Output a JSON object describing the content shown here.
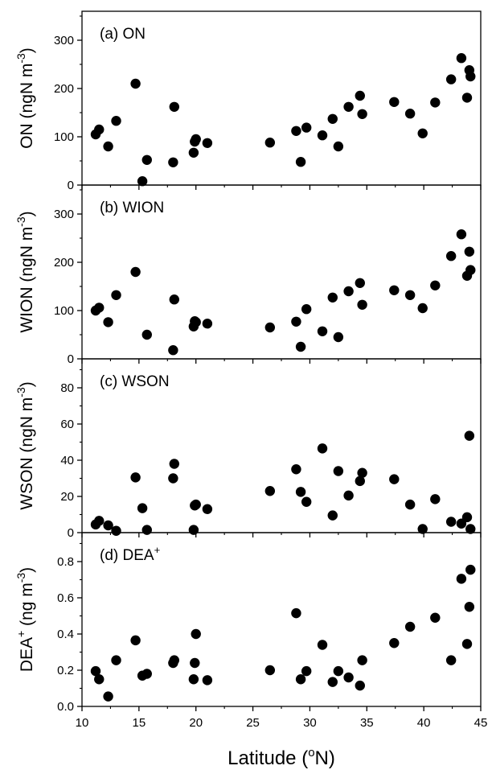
{
  "xaxis": {
    "label": "Latitude (",
    "label_sup": "o",
    "label_end": "N)",
    "range": [
      10,
      45
    ],
    "ticks": [
      10,
      15,
      20,
      25,
      30,
      35,
      40,
      45
    ]
  },
  "chart_data": [
    {
      "type": "scatter",
      "panel_label": "(a) ON",
      "ylabel_main": "ON (ngN m",
      "ylabel_sup": "-3",
      "ylabel_end": ")",
      "ylim": [
        0,
        360
      ],
      "yticks": [
        0,
        100,
        200,
        300
      ],
      "points": [
        [
          11.2,
          105
        ],
        [
          11.5,
          115
        ],
        [
          12.3,
          80
        ],
        [
          13.0,
          133
        ],
        [
          14.7,
          210
        ],
        [
          15.3,
          8
        ],
        [
          15.7,
          52
        ],
        [
          18.0,
          47
        ],
        [
          18.1,
          162
        ],
        [
          19.8,
          67
        ],
        [
          19.9,
          90
        ],
        [
          20.0,
          95
        ],
        [
          21.0,
          87
        ],
        [
          26.5,
          88
        ],
        [
          28.8,
          112
        ],
        [
          29.2,
          48
        ],
        [
          29.7,
          119
        ],
        [
          31.1,
          103
        ],
        [
          32.0,
          137
        ],
        [
          32.5,
          80
        ],
        [
          33.4,
          162
        ],
        [
          34.4,
          185
        ],
        [
          34.6,
          147
        ],
        [
          37.4,
          172
        ],
        [
          38.8,
          148
        ],
        [
          39.9,
          107
        ],
        [
          41.0,
          171
        ],
        [
          42.4,
          219
        ],
        [
          43.3,
          263
        ],
        [
          43.8,
          181
        ],
        [
          44.0,
          238
        ],
        [
          44.1,
          225
        ]
      ]
    },
    {
      "type": "scatter",
      "panel_label": "(b) WION",
      "ylabel_main": "WION (ngN m",
      "ylabel_sup": "-3",
      "ylabel_end": ")",
      "ylim": [
        0,
        360
      ],
      "yticks": [
        0,
        100,
        200,
        300
      ],
      "points": [
        [
          11.2,
          100
        ],
        [
          11.5,
          106
        ],
        [
          12.3,
          76
        ],
        [
          13.0,
          132
        ],
        [
          14.7,
          180
        ],
        [
          15.7,
          50
        ],
        [
          18.0,
          18
        ],
        [
          18.1,
          123
        ],
        [
          19.8,
          67
        ],
        [
          19.9,
          78
        ],
        [
          20.0,
          76
        ],
        [
          21.0,
          73
        ],
        [
          26.5,
          65
        ],
        [
          28.8,
          77
        ],
        [
          29.2,
          25
        ],
        [
          29.7,
          103
        ],
        [
          31.1,
          57
        ],
        [
          32.0,
          127
        ],
        [
          32.5,
          45
        ],
        [
          33.4,
          140
        ],
        [
          34.4,
          157
        ],
        [
          34.6,
          112
        ],
        [
          37.4,
          142
        ],
        [
          38.8,
          132
        ],
        [
          39.9,
          105
        ],
        [
          41.0,
          152
        ],
        [
          42.4,
          213
        ],
        [
          43.3,
          258
        ],
        [
          43.8,
          172
        ],
        [
          44.0,
          222
        ],
        [
          44.1,
          184
        ]
      ]
    },
    {
      "type": "scatter",
      "panel_label": "(c) WSON",
      "ylabel_main": "WSON (ngN m",
      "ylabel_sup": "-3",
      "ylabel_end": ")",
      "ylim": [
        0,
        96
      ],
      "yticks": [
        0,
        20,
        40,
        60,
        80
      ],
      "points": [
        [
          11.2,
          4.5
        ],
        [
          11.5,
          6.5
        ],
        [
          12.3,
          4
        ],
        [
          13.0,
          1
        ],
        [
          14.7,
          30.5
        ],
        [
          15.3,
          13.5
        ],
        [
          15.7,
          1.5
        ],
        [
          18.0,
          30
        ],
        [
          18.1,
          38
        ],
        [
          19.8,
          1.5
        ],
        [
          19.9,
          15
        ],
        [
          20.0,
          15.5
        ],
        [
          21.0,
          13
        ],
        [
          26.5,
          23
        ],
        [
          28.8,
          35
        ],
        [
          29.2,
          22.5
        ],
        [
          29.7,
          17
        ],
        [
          31.1,
          46.5
        ],
        [
          32.0,
          9.5
        ],
        [
          32.5,
          34
        ],
        [
          33.4,
          20.5
        ],
        [
          34.4,
          28.5
        ],
        [
          34.6,
          33
        ],
        [
          37.4,
          29.5
        ],
        [
          38.8,
          15.5
        ],
        [
          39.9,
          2
        ],
        [
          41.0,
          18.5
        ],
        [
          42.4,
          6
        ],
        [
          43.3,
          5
        ],
        [
          43.8,
          8.5
        ],
        [
          44.0,
          53.5
        ],
        [
          44.1,
          2
        ]
      ]
    },
    {
      "type": "scatter",
      "panel_label": "(d) DEA",
      "panel_label_sup": "+",
      "ylabel_main": "DEA",
      "ylabel_sup": "+",
      "ylabel_end": " (ng m",
      "ylabel_sup2": "-3",
      "ylabel_end2": ")",
      "ylim": [
        0,
        0.96
      ],
      "yticks": [
        0.0,
        0.2,
        0.4,
        0.6,
        0.8
      ],
      "ytick_labels": [
        "0.0",
        "0.2",
        "0.4",
        "0.6",
        "0.8"
      ],
      "points": [
        [
          11.2,
          0.195
        ],
        [
          11.5,
          0.15
        ],
        [
          12.3,
          0.055
        ],
        [
          13.0,
          0.255
        ],
        [
          14.7,
          0.365
        ],
        [
          15.3,
          0.17
        ],
        [
          15.7,
          0.18
        ],
        [
          18.0,
          0.24
        ],
        [
          18.1,
          0.255
        ],
        [
          19.8,
          0.15
        ],
        [
          19.9,
          0.24
        ],
        [
          20.0,
          0.4
        ],
        [
          21.0,
          0.145
        ],
        [
          26.5,
          0.2
        ],
        [
          28.8,
          0.515
        ],
        [
          29.2,
          0.15
        ],
        [
          29.7,
          0.195
        ],
        [
          31.1,
          0.34
        ],
        [
          32.0,
          0.135
        ],
        [
          32.5,
          0.195
        ],
        [
          33.4,
          0.16
        ],
        [
          34.4,
          0.115
        ],
        [
          34.6,
          0.255
        ],
        [
          37.4,
          0.35
        ],
        [
          38.8,
          0.44
        ],
        [
          41.0,
          0.49
        ],
        [
          42.4,
          0.255
        ],
        [
          43.3,
          0.705
        ],
        [
          43.8,
          0.345
        ],
        [
          44.0,
          0.55
        ],
        [
          44.1,
          0.755
        ]
      ]
    }
  ]
}
